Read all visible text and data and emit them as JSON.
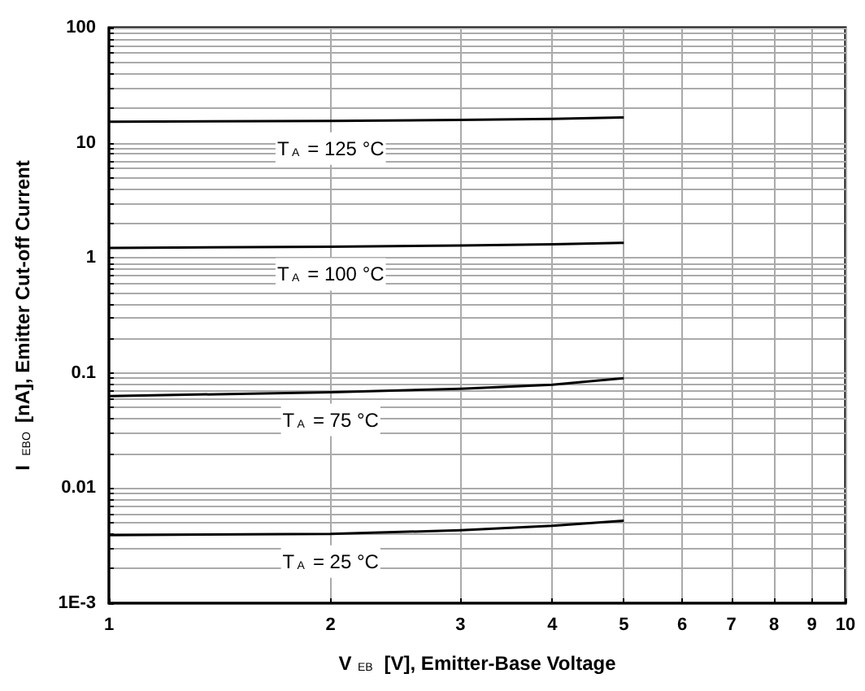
{
  "chart_data": {
    "type": "line",
    "xlabel": "V$_{EB}$ [V], Emitter-Base Voltage",
    "ylabel": "I$_{EBO}$[nA], Emitter Cut-off Current",
    "x": [
      1,
      2,
      3,
      4,
      5
    ],
    "series": [
      {
        "name": "T$_{A}$ = 125 °C",
        "color": "#000000",
        "values": [
          15.2,
          15.5,
          15.8,
          16.1,
          16.6
        ]
      },
      {
        "name": "T$_{A}$ = 100 °C",
        "color": "#000000",
        "values": [
          1.22,
          1.25,
          1.28,
          1.31,
          1.35
        ]
      },
      {
        "name": "T$_{A}$ = 75 °C",
        "color": "#000000",
        "values": [
          0.063,
          0.068,
          0.073,
          0.079,
          0.09
        ]
      },
      {
        "name": "T$_{A}$ = 25 °C",
        "color": "#000000",
        "values": [
          0.0039,
          0.004,
          0.0043,
          0.0047,
          0.0052
        ]
      }
    ],
    "log": "xy",
    "xlim": [
      1,
      10
    ],
    "xticks": [
      1,
      2,
      3,
      4,
      5,
      6,
      7,
      8,
      9,
      10
    ],
    "ylim": [
      0.001,
      100
    ],
    "yticks": [
      {
        "value": 0.001,
        "label": "1E-3"
      },
      0.01,
      0.1,
      1,
      10,
      100
    ],
    "grid": true,
    "marker": "none"
  }
}
